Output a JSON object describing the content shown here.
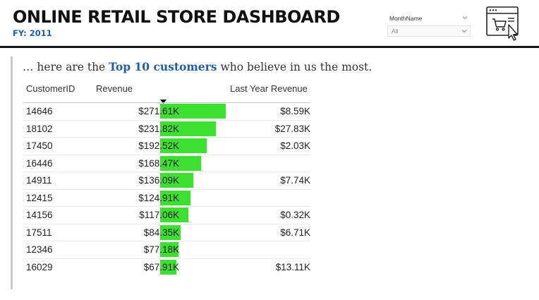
{
  "header": {
    "title": "ONLINE RETAIL STORE DASHBOARD",
    "fiscal_year": "FY: 2011"
  },
  "slicer": {
    "label": "MonthName",
    "value": "All"
  },
  "icons": {
    "store": "online-store-cart-icon",
    "chevron": "chevron-down-icon"
  },
  "intro": {
    "prefix": "… here are the ",
    "highlight": "Top 10 customers",
    "suffix": " who believe in us the most."
  },
  "table": {
    "columns": [
      "CustomerID",
      "Revenue",
      "Last Year Revenue"
    ],
    "sorted_by": "Revenue",
    "sort_direction": "descending",
    "bar_color": "#3ddf30",
    "rows": [
      {
        "id": "14646",
        "revenue": "$271.61K",
        "revenue_value": 271.61,
        "last_year": "$8.59K"
      },
      {
        "id": "18102",
        "revenue": "$231.82K",
        "revenue_value": 231.82,
        "last_year": "$27.83K"
      },
      {
        "id": "17450",
        "revenue": "$192.52K",
        "revenue_value": 192.52,
        "last_year": "$2.03K"
      },
      {
        "id": "16446",
        "revenue": "$168.47K",
        "revenue_value": 168.47,
        "last_year": ""
      },
      {
        "id": "14911",
        "revenue": "$136.09K",
        "revenue_value": 136.09,
        "last_year": "$7.74K"
      },
      {
        "id": "12415",
        "revenue": "$124.91K",
        "revenue_value": 124.91,
        "last_year": ""
      },
      {
        "id": "14156",
        "revenue": "$117.06K",
        "revenue_value": 117.06,
        "last_year": "$0.32K"
      },
      {
        "id": "17511",
        "revenue": "$84.35K",
        "revenue_value": 84.35,
        "last_year": "$6.71K"
      },
      {
        "id": "12346",
        "revenue": "$77.18K",
        "revenue_value": 77.18,
        "last_year": ""
      },
      {
        "id": "16029",
        "revenue": "$67.91K",
        "revenue_value": 67.91,
        "last_year": "$13.11K"
      }
    ]
  }
}
